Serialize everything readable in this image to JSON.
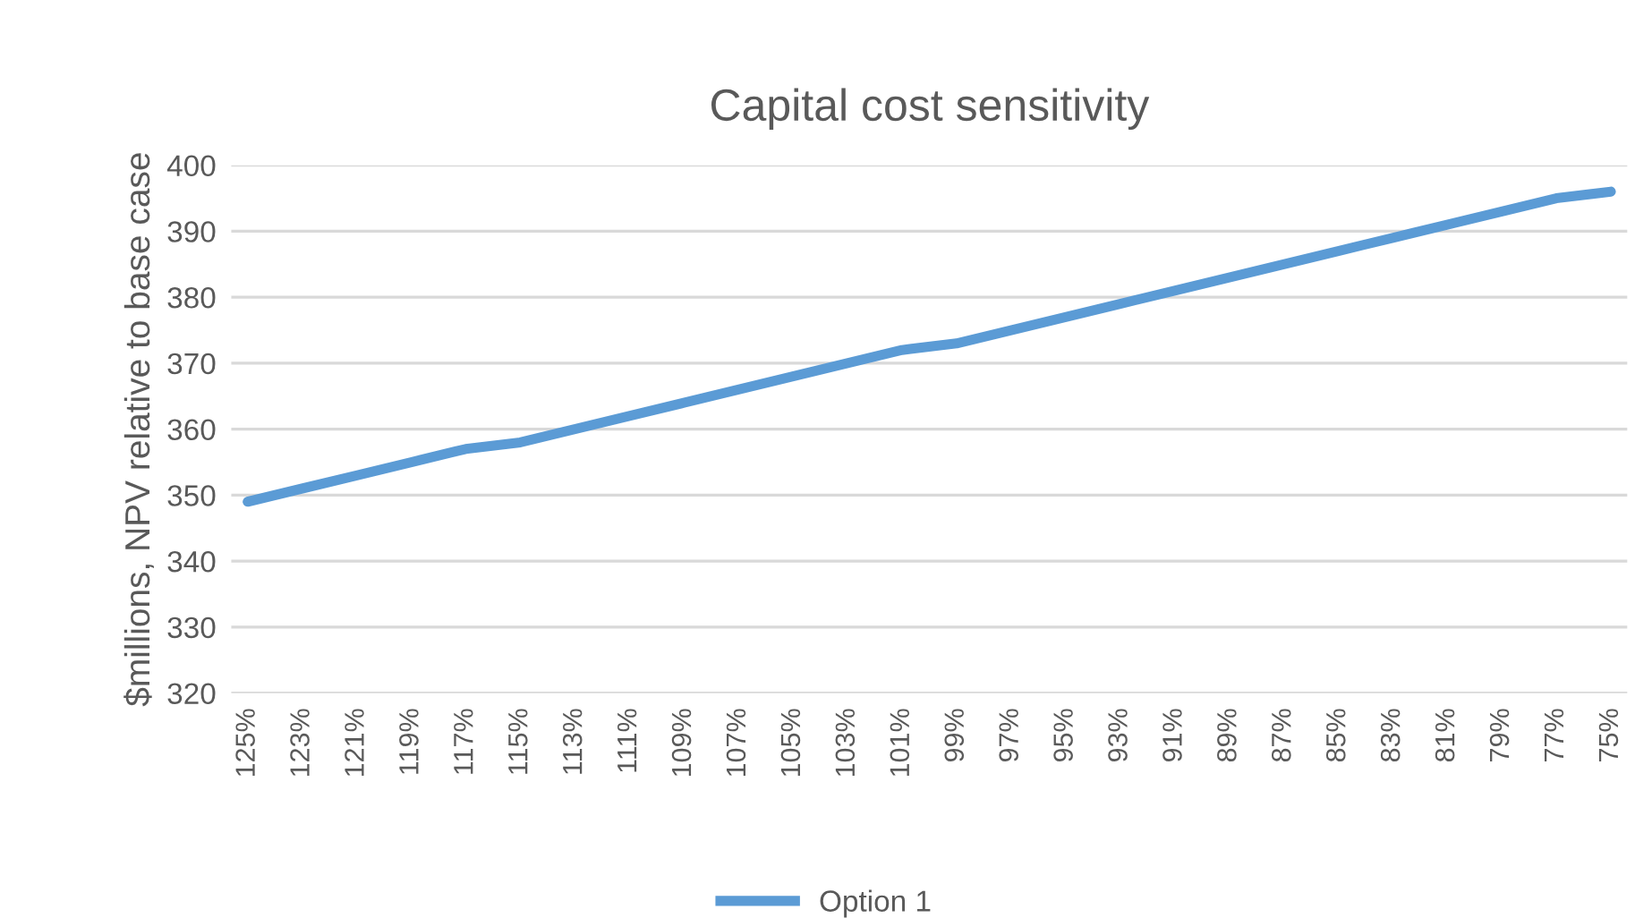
{
  "chart_data": {
    "type": "line",
    "title": "Capital cost sensitivity",
    "ylabel": "$millions, NPV relative to base case",
    "categories": [
      "125%",
      "123%",
      "121%",
      "119%",
      "117%",
      "115%",
      "113%",
      "111%",
      "109%",
      "107%",
      "105%",
      "103%",
      "101%",
      "99%",
      "97%",
      "95%",
      "93%",
      "91%",
      "89%",
      "87%",
      "85%",
      "83%",
      "81%",
      "79%",
      "77%",
      "75%"
    ],
    "series": [
      {
        "name": "Option 1",
        "color": "#5b9bd5",
        "values": [
          349,
          351,
          353,
          355,
          357,
          358,
          360,
          362,
          364,
          366,
          368,
          370,
          372,
          373,
          375,
          377,
          379,
          381,
          383,
          385,
          387,
          389,
          391,
          393,
          395,
          396
        ]
      }
    ],
    "ylim": [
      320,
      400
    ],
    "yticks": [
      320,
      330,
      340,
      350,
      360,
      370,
      380,
      390,
      400
    ],
    "grid": "y",
    "legend": "bottom",
    "marker": "none",
    "line_style": "solid"
  }
}
